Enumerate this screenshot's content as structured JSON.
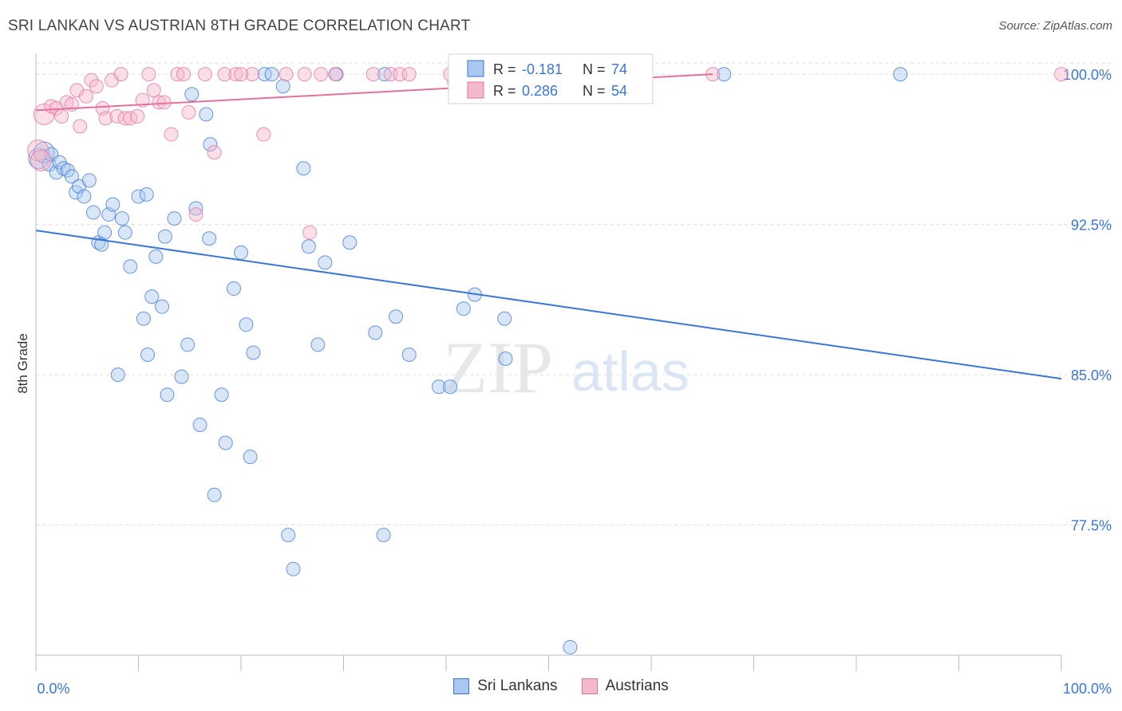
{
  "title": "SRI LANKAN VS AUSTRIAN 8TH GRADE CORRELATION CHART",
  "source": "Source: ZipAtlas.com",
  "watermark": {
    "zip": "ZIP",
    "atlas": "atlas"
  },
  "colors": {
    "blue": "#3a76d6",
    "blue_fill": "#a9c7f0",
    "pink": "#e2729b",
    "pink_fill": "#f6b8cc",
    "grid": "#dddddd",
    "axis_text": "#3a76d6"
  },
  "legend_box": [
    {
      "r_label": "R =",
      "r_value": "-0.181",
      "n_label": "N =",
      "n_value": "74"
    },
    {
      "r_label": "R =",
      "r_value": "0.286",
      "n_label": "N =",
      "n_value": "54"
    }
  ],
  "chart_data": {
    "type": "scatter",
    "title": "SRI LANKAN VS AUSTRIAN 8TH GRADE CORRELATION CHART",
    "xlabel": "",
    "ylabel": "8th Grade",
    "xlim": [
      0,
      100
    ],
    "ylim": [
      71.0,
      101.0
    ],
    "x_tick_labels": [
      "0.0%",
      "100.0%"
    ],
    "y_ticks": [
      77.5,
      85.0,
      92.5,
      100.0
    ],
    "y_tick_labels": [
      "77.5%",
      "85.0%",
      "92.5%",
      "100.0%"
    ],
    "grid": true,
    "legend_position": "bottom",
    "series": [
      {
        "name": "Sri Lankans",
        "color": "#3a76d6",
        "trend": {
          "x": [
            0,
            100
          ],
          "y": [
            92.2,
            84.8
          ]
        },
        "points": [
          [
            0.3,
            95.8
          ],
          [
            0.8,
            96.1
          ],
          [
            1.3,
            95.5
          ],
          [
            1.5,
            96.0
          ],
          [
            2.0,
            95.1
          ],
          [
            2.3,
            95.6
          ],
          [
            2.7,
            95.3
          ],
          [
            3.1,
            95.2
          ],
          [
            3.5,
            94.9
          ],
          [
            3.9,
            94.1
          ],
          [
            4.2,
            94.4
          ],
          [
            4.7,
            93.9
          ],
          [
            5.2,
            94.7
          ],
          [
            5.6,
            93.1
          ],
          [
            6.1,
            91.6
          ],
          [
            6.4,
            91.5
          ],
          [
            6.7,
            92.1
          ],
          [
            7.1,
            93.0
          ],
          [
            7.5,
            93.5
          ],
          [
            8.4,
            92.8
          ],
          [
            8.7,
            92.1
          ],
          [
            9.2,
            90.4
          ],
          [
            10.0,
            93.9
          ],
          [
            10.5,
            87.8
          ],
          [
            10.9,
            86.0
          ],
          [
            10.8,
            94.0
          ],
          [
            11.3,
            88.9
          ],
          [
            11.7,
            90.9
          ],
          [
            12.3,
            88.4
          ],
          [
            12.6,
            91.9
          ],
          [
            8.0,
            85.0
          ],
          [
            12.8,
            84.0
          ],
          [
            13.5,
            92.8
          ],
          [
            14.2,
            84.9
          ],
          [
            14.8,
            86.5
          ],
          [
            15.2,
            99.0
          ],
          [
            15.6,
            93.3
          ],
          [
            16.0,
            82.5
          ],
          [
            16.6,
            98.0
          ],
          [
            16.9,
            91.8
          ],
          [
            17.0,
            96.5
          ],
          [
            17.4,
            79.0
          ],
          [
            18.1,
            84.0
          ],
          [
            18.5,
            81.6
          ],
          [
            19.3,
            89.3
          ],
          [
            20.0,
            91.1
          ],
          [
            20.5,
            87.5
          ],
          [
            20.9,
            80.9
          ],
          [
            21.2,
            86.1
          ],
          [
            22.3,
            100.0
          ],
          [
            23.0,
            100.0
          ],
          [
            24.1,
            99.4
          ],
          [
            24.6,
            77.0
          ],
          [
            25.1,
            75.3
          ],
          [
            26.1,
            95.3
          ],
          [
            26.6,
            91.4
          ],
          [
            27.5,
            86.5
          ],
          [
            28.2,
            90.6
          ],
          [
            29.3,
            100.0
          ],
          [
            30.6,
            91.6
          ],
          [
            33.1,
            87.1
          ],
          [
            33.9,
            77.0
          ],
          [
            34.0,
            100.0
          ],
          [
            35.1,
            87.9
          ],
          [
            36.4,
            86.0
          ],
          [
            39.3,
            84.4
          ],
          [
            40.4,
            84.4
          ],
          [
            41.7,
            88.3
          ],
          [
            42.8,
            89.0
          ],
          [
            45.7,
            87.8
          ],
          [
            45.8,
            85.8
          ],
          [
            52.1,
            71.4
          ],
          [
            67.1,
            100.0
          ],
          [
            84.3,
            100.0
          ]
        ]
      },
      {
        "name": "Austrians",
        "color": "#e2729b",
        "trend": {
          "x": [
            0,
            66
          ],
          "y": [
            98.2,
            100.0
          ]
        },
        "points": [
          [
            0.2,
            96.2
          ],
          [
            0.5,
            95.7
          ],
          [
            0.8,
            98.0
          ],
          [
            1.5,
            98.4
          ],
          [
            2.0,
            98.3
          ],
          [
            2.5,
            97.9
          ],
          [
            3.0,
            98.6
          ],
          [
            3.5,
            98.5
          ],
          [
            4.0,
            99.2
          ],
          [
            4.3,
            97.4
          ],
          [
            4.9,
            98.9
          ],
          [
            5.4,
            99.7
          ],
          [
            5.9,
            99.4
          ],
          [
            6.5,
            98.3
          ],
          [
            6.8,
            97.8
          ],
          [
            7.4,
            99.7
          ],
          [
            7.9,
            97.9
          ],
          [
            8.3,
            100.0
          ],
          [
            8.7,
            97.8
          ],
          [
            9.2,
            97.8
          ],
          [
            9.9,
            97.9
          ],
          [
            10.4,
            98.7
          ],
          [
            11.0,
            100.0
          ],
          [
            11.5,
            99.2
          ],
          [
            12.0,
            98.6
          ],
          [
            12.5,
            98.6
          ],
          [
            13.2,
            97.0
          ],
          [
            13.8,
            100.0
          ],
          [
            14.4,
            100.0
          ],
          [
            14.9,
            98.1
          ],
          [
            15.6,
            93.0
          ],
          [
            16.5,
            100.0
          ],
          [
            17.4,
            96.1
          ],
          [
            18.4,
            100.0
          ],
          [
            19.5,
            100.0
          ],
          [
            21.1,
            100.0
          ],
          [
            22.2,
            97.0
          ],
          [
            24.4,
            100.0
          ],
          [
            26.7,
            92.1
          ],
          [
            26.2,
            100.0
          ],
          [
            27.8,
            100.0
          ],
          [
            29.2,
            100.0
          ],
          [
            32.9,
            100.0
          ],
          [
            34.6,
            100.0
          ],
          [
            35.5,
            100.0
          ],
          [
            40.4,
            100.0
          ],
          [
            40.8,
            99.6
          ],
          [
            43.2,
            100.0
          ],
          [
            44.7,
            100.0
          ],
          [
            52.3,
            99.9
          ],
          [
            66.0,
            100.0
          ],
          [
            36.4,
            100.0
          ],
          [
            20.0,
            100.0
          ],
          [
            100.0,
            100.0
          ]
        ]
      }
    ]
  }
}
